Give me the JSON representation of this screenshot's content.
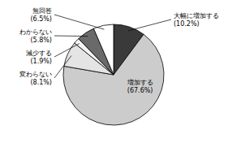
{
  "chart_data": {
    "type": "pie",
    "categories": [
      "大幅に増加する",
      "増加する",
      "変わらない",
      "減少する",
      "わからない",
      "無回答"
    ],
    "values": [
      10.2,
      67.6,
      8.1,
      1.9,
      5.8,
      6.5
    ],
    "value_labels": [
      "(10.2%)",
      "(67.6%)",
      "(8.1%)",
      "(1.9%)",
      "(5.8%)",
      "(6.5%)"
    ],
    "colors": [
      "#3a3a3a",
      "#cccccc",
      "#e4e4e4",
      "#f4f4f4",
      "#6a6a6a",
      "#ffffff"
    ],
    "data_labels": true
  }
}
